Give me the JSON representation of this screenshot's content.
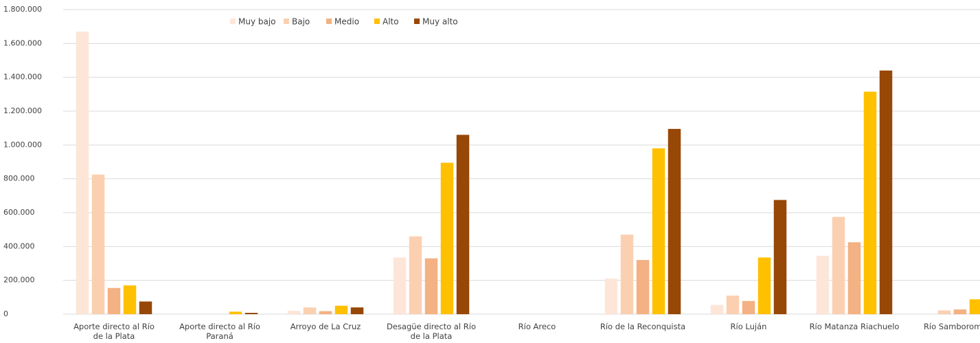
{
  "chart_data": {
    "type": "bar",
    "title": "",
    "xlabel": "",
    "ylabel": "",
    "ylim": [
      0,
      1800000
    ],
    "yticks": [
      0,
      200000,
      400000,
      600000,
      800000,
      1000000,
      1200000,
      1400000,
      1600000,
      1800000
    ],
    "ytick_labels": [
      "0",
      "200.000",
      "400.000",
      "600.000",
      "800.000",
      "1.000.000",
      "1.200.000",
      "1.400.000",
      "1.600.000",
      "1.800.000"
    ],
    "grid": true,
    "legend_position": "top",
    "categories": [
      "Aporte directo al Río de la Plata",
      "Aporte directo al Río Paraná",
      "Arroyo de La Cruz",
      "Desagüe directo al Río de la Plata",
      "Río Areco",
      "Río de la Reconquista",
      "Río Luján",
      "Río Matanza Riachuelo",
      "Río Samborombón"
    ],
    "category_lines": [
      [
        "Aporte directo al Río",
        "de la Plata"
      ],
      [
        "Aporte directo al Río",
        "Paraná"
      ],
      [
        "Arroyo de La Cruz"
      ],
      [
        "Desagüe directo al Río",
        "de la Plata"
      ],
      [
        "Río Areco"
      ],
      [
        "Río de la Reconquista"
      ],
      [
        "Río Luján"
      ],
      [
        "Río Matanza Riachuelo"
      ],
      [
        "Río Samborombón"
      ]
    ],
    "series": [
      {
        "name": "Muy bajo",
        "color": "#fde6d8",
        "values": [
          1670000,
          0,
          20000,
          335000,
          0,
          210000,
          55000,
          345000,
          0
        ]
      },
      {
        "name": "Bajo",
        "color": "#fbd0b1",
        "values": [
          825000,
          0,
          40000,
          460000,
          0,
          470000,
          110000,
          575000,
          22000
        ]
      },
      {
        "name": "Medio",
        "color": "#f4b183",
        "values": [
          155000,
          0,
          18000,
          330000,
          0,
          320000,
          78000,
          425000,
          28000
        ]
      },
      {
        "name": "Alto",
        "color": "#ffc000",
        "values": [
          170000,
          15000,
          50000,
          895000,
          0,
          980000,
          335000,
          1315000,
          88000
        ]
      },
      {
        "name": "Muy alto",
        "color": "#974706",
        "values": [
          75000,
          8000,
          40000,
          1060000,
          0,
          1095000,
          675000,
          1440000,
          0
        ]
      }
    ]
  }
}
